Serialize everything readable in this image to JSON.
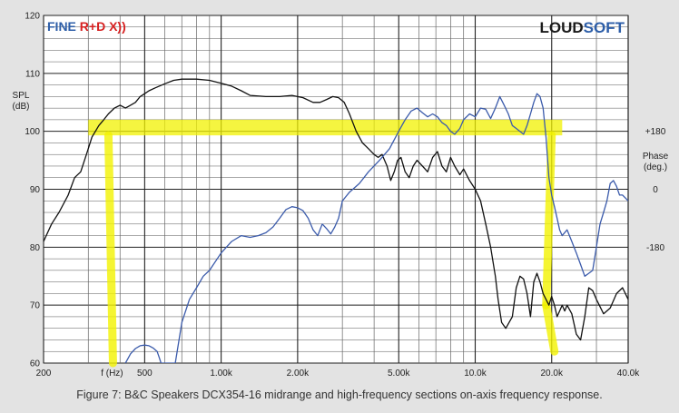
{
  "caption": "Figure 7: B&C Speakers DCX354-16 midrange and high-frequency sections on-axis frequency response.",
  "brand": {
    "left_a": "FINE ",
    "left_b": "R+D",
    "left_c": " X))",
    "right_a": "LOUD",
    "right_b": "SOFT"
  },
  "colors": {
    "spl_line": "#111111",
    "phase_line": "#3b5bab",
    "highlight": "#f2f200",
    "brand_red": "#d62020",
    "brand_blue": "#2d5ea8"
  },
  "chart_data": {
    "type": "line",
    "xscale": "log",
    "xlim": [
      200,
      40000
    ],
    "ylim": [
      60,
      120
    ],
    "ylabel": "SPL\n(dB)",
    "y2label": "Phase\n(deg.)",
    "xlabel": "f (Hz)",
    "grid": true,
    "x_ticks": [
      {
        "value": 200,
        "label": "200"
      },
      {
        "value": 500,
        "label": "500"
      },
      {
        "value": 1000,
        "label": "1.00k"
      },
      {
        "value": 2000,
        "label": "2.00k"
      },
      {
        "value": 5000,
        "label": "5.00k"
      },
      {
        "value": 10000,
        "label": "10.0k"
      },
      {
        "value": 20000,
        "label": "20.0k"
      },
      {
        "value": 40000,
        "label": "40.0k"
      }
    ],
    "y_ticks": [
      60,
      70,
      80,
      90,
      100,
      110,
      120
    ],
    "y2_ticks": [
      {
        "label": "+180",
        "at_spl": 100
      },
      {
        "label": "0",
        "at_spl": 90
      },
      {
        "label": "-180",
        "at_spl": 80
      }
    ],
    "series": [
      {
        "name": "",
        "role": "spl",
        "x": [
          200,
          215,
          230,
          250,
          265,
          280,
          295,
          310,
          320,
          330,
          345,
          360,
          380,
          400,
          420,
          440,
          460,
          480,
          500,
          520,
          550,
          600,
          650,
          700,
          800,
          900,
          1000,
          1100,
          1200,
          1300,
          1500,
          1700,
          1900,
          2100,
          2300,
          2450,
          2600,
          2750,
          2900,
          3050,
          3200,
          3400,
          3600,
          3800,
          4000,
          4150,
          4300,
          4500,
          4650,
          4800,
          4950,
          5100,
          5300,
          5500,
          5700,
          5900,
          6200,
          6500,
          6800,
          7100,
          7400,
          7700,
          8000,
          8300,
          8700,
          9000,
          9500,
          10000,
          10500,
          11000,
          11500,
          12000,
          12300,
          12700,
          13200,
          14000,
          14500,
          15000,
          15500,
          16000,
          16500,
          17000,
          17500,
          18000,
          18500,
          19000,
          19500,
          20000,
          20500,
          21000,
          21500,
          22000,
          22500,
          23000,
          24000,
          25000,
          26000,
          27000,
          28000,
          29000,
          30000,
          32000,
          34000,
          36000,
          38000,
          40000
        ],
        "y": [
          81,
          84,
          86,
          89,
          92,
          93,
          96,
          99,
          100,
          101,
          102,
          103,
          104,
          104.5,
          104,
          104.5,
          105,
          106,
          106.5,
          107,
          107.5,
          108.2,
          108.8,
          109,
          109,
          108.8,
          108.3,
          107.8,
          107,
          106.2,
          106,
          106,
          106.2,
          105.8,
          105,
          105,
          105.5,
          106,
          105.8,
          105,
          103,
          100,
          98,
          97,
          96,
          95.5,
          96,
          94,
          91.5,
          93,
          95,
          95.5,
          93,
          92,
          94,
          95,
          94,
          93,
          95.5,
          96.5,
          94,
          93,
          95.5,
          94,
          92.5,
          93.5,
          91.5,
          90,
          88,
          84,
          80,
          75,
          71,
          67,
          66,
          68,
          73,
          75,
          74.5,
          72,
          68,
          74,
          75.5,
          74,
          72,
          71,
          70,
          71.5,
          70,
          68,
          69,
          70,
          69,
          70,
          68.5,
          65,
          64,
          68,
          73,
          72.5,
          71,
          68.5,
          69.5,
          72,
          73,
          71
        ]
      },
      {
        "name": "",
        "role": "phase",
        "x": [
          420,
          430,
          440,
          460,
          480,
          500,
          520,
          540,
          560,
          570,
          580,
          590,
          600,
          620,
          640,
          660,
          700,
          750,
          800,
          850,
          900,
          1000,
          1100,
          1200,
          1300,
          1400,
          1500,
          1600,
          1700,
          1800,
          1900,
          2000,
          2100,
          2200,
          2300,
          2400,
          2500,
          2600,
          2700,
          2800,
          2900,
          3000,
          3200,
          3500,
          3800,
          4200,
          4600,
          5000,
          5300,
          5600,
          5900,
          6200,
          6500,
          6800,
          7100,
          7400,
          7700,
          8000,
          8300,
          8700,
          9000,
          9500,
          10000,
          10500,
          11000,
          11500,
          12000,
          12500,
          13000,
          13500,
          14000,
          14500,
          15000,
          15500,
          16000,
          16500,
          17000,
          17500,
          18000,
          18500,
          19000,
          19500,
          20000,
          20500,
          21000,
          21500,
          22000,
          23000,
          24000,
          25000,
          26000,
          27000,
          28000,
          29000,
          30000,
          31000,
          32000,
          33000,
          34000,
          35000,
          36000,
          37000,
          38000,
          39000,
          40000
        ],
        "y": [
          60,
          60.8,
          61.6,
          62.5,
          63,
          63.1,
          63,
          62.6,
          62,
          61,
          60,
          60,
          60,
          60,
          60,
          60,
          67,
          71,
          73,
          75,
          76,
          79,
          81,
          82,
          81.7,
          82,
          82.5,
          83.5,
          85,
          86.5,
          87,
          86.8,
          86.3,
          85,
          83,
          82,
          84,
          83.2,
          82.3,
          83.5,
          85,
          88,
          89.5,
          91,
          93,
          95,
          97,
          100,
          102,
          103.5,
          104,
          103.2,
          102.5,
          103,
          102.5,
          101.5,
          101,
          100,
          99.5,
          100.5,
          102,
          103,
          102.5,
          104,
          103.8,
          102.2,
          104,
          106,
          104.5,
          103,
          101,
          100.5,
          100,
          99.5,
          101,
          103,
          105,
          106.5,
          106,
          104,
          99,
          92,
          89,
          87,
          85,
          83,
          82,
          83,
          81,
          79,
          77,
          75,
          75.5,
          76,
          80,
          84,
          86,
          88,
          91,
          91.5,
          90.5,
          89,
          89,
          88.5,
          88
        ]
      }
    ],
    "highlight": {
      "band_y": [
        99.3,
        102
      ],
      "band_x_start": 300,
      "band_x_end": 22000,
      "left_drop_x": 360,
      "left_drop_bottom": 60,
      "right_drop_x": 20000,
      "right_drop_bottom": 62
    }
  }
}
